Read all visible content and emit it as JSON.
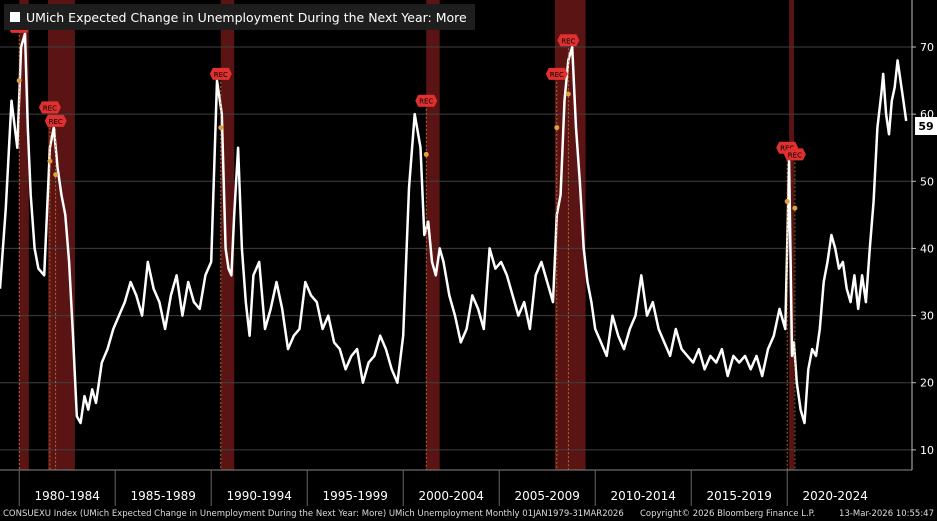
{
  "legend": {
    "label": "UMich Expected Change in Unemployment During the Next Year: More",
    "color": "#ffffff"
  },
  "footer": {
    "left": "CONSUEXU Index (UMich Expected Change in Unemployment During the Next Year: More) UMich Unemployment Monthly 01JAN1979-31MAR2026",
    "middle": "Copyright© 2026 Bloomberg Finance L.P.",
    "right": "13-Mar-2026 10:55:47"
  },
  "colors": {
    "background": "#000000",
    "line": "#ffffff",
    "recession": "#5a1414",
    "marker": "#e03030",
    "dot": "#e0a040",
    "grid": "#404040"
  },
  "chart_data": {
    "type": "line",
    "series": [
      {
        "name": "UMich Expected Change in Unemployment During the Next Year: More",
        "x": [
          1979.0,
          1979.3,
          1979.6,
          1979.9,
          1980.1,
          1980.3,
          1980.45,
          1980.6,
          1980.8,
          1981.0,
          1981.3,
          1981.6,
          1981.8,
          1982.0,
          1982.2,
          1982.4,
          1982.6,
          1982.8,
          1983.0,
          1983.2,
          1983.4,
          1983.6,
          1983.8,
          1984.0,
          1984.3,
          1984.6,
          1984.9,
          1985.2,
          1985.5,
          1985.8,
          1986.1,
          1986.4,
          1986.7,
          1987.0,
          1987.3,
          1987.6,
          1987.9,
          1988.2,
          1988.5,
          1988.8,
          1989.1,
          1989.4,
          1989.7,
          1990.0,
          1990.3,
          1990.55,
          1990.75,
          1990.9,
          1991.05,
          1991.2,
          1991.4,
          1991.6,
          1991.8,
          1992.0,
          1992.2,
          1992.5,
          1992.8,
          1993.1,
          1993.4,
          1993.7,
          1994.0,
          1994.3,
          1994.6,
          1994.9,
          1995.2,
          1995.5,
          1995.8,
          1996.1,
          1996.4,
          1996.7,
          1997.0,
          1997.3,
          1997.6,
          1997.9,
          1998.2,
          1998.5,
          1998.8,
          1999.1,
          1999.4,
          1999.7,
          2000.0,
          2000.3,
          2000.6,
          2000.9,
          2001.1,
          2001.3,
          2001.5,
          2001.7,
          2001.9,
          2002.1,
          2002.4,
          2002.7,
          2003.0,
          2003.3,
          2003.6,
          2003.9,
          2004.2,
          2004.5,
          2004.8,
          2005.1,
          2005.4,
          2005.7,
          2006.0,
          2006.3,
          2006.6,
          2006.9,
          2007.2,
          2007.5,
          2007.8,
          2008.0,
          2008.2,
          2008.4,
          2008.6,
          2008.8,
          2009.0,
          2009.2,
          2009.4,
          2009.6,
          2009.8,
          2010.0,
          2010.3,
          2010.6,
          2010.9,
          2011.2,
          2011.5,
          2011.8,
          2012.1,
          2012.4,
          2012.7,
          2013.0,
          2013.3,
          2013.6,
          2013.9,
          2014.2,
          2014.5,
          2014.8,
          2015.1,
          2015.4,
          2015.7,
          2016.0,
          2016.3,
          2016.6,
          2016.9,
          2017.2,
          2017.5,
          2017.8,
          2018.1,
          2018.4,
          2018.7,
          2019.0,
          2019.3,
          2019.6,
          2019.9,
          2020.1,
          2020.25,
          2020.35,
          2020.5,
          2020.7,
          2020.9,
          2021.1,
          2021.3,
          2021.5,
          2021.7,
          2021.9,
          2022.1,
          2022.3,
          2022.5,
          2022.7,
          2022.9,
          2023.1,
          2023.3,
          2023.5,
          2023.7,
          2023.9,
          2024.1,
          2024.3,
          2024.5,
          2024.7,
          2024.9,
          2025.0,
          2025.15,
          2025.3,
          2025.45,
          2025.6,
          2025.75,
          2025.9,
          2026.05,
          2026.2
        ],
        "y": [
          34,
          46,
          62,
          55,
          70,
          72,
          58,
          48,
          40,
          37,
          36,
          55,
          58,
          52,
          48,
          45,
          38,
          27,
          15,
          14,
          18,
          16,
          19,
          17,
          23,
          25,
          28,
          30,
          32,
          35,
          33,
          30,
          38,
          34,
          32,
          28,
          33,
          36,
          30,
          35,
          32,
          31,
          36,
          38,
          65,
          60,
          40,
          37,
          36,
          45,
          55,
          40,
          32,
          27,
          36,
          38,
          28,
          31,
          35,
          31,
          25,
          27,
          28,
          35,
          33,
          32,
          28,
          30,
          26,
          25,
          22,
          24,
          25,
          20,
          23,
          24,
          27,
          25,
          22,
          20,
          27,
          49,
          60,
          55,
          42,
          44,
          38,
          36,
          40,
          38,
          33,
          30,
          26,
          28,
          33,
          31,
          28,
          40,
          37,
          38,
          36,
          33,
          30,
          32,
          28,
          36,
          38,
          35,
          32,
          45,
          48,
          62,
          68,
          70,
          58,
          50,
          40,
          35,
          32,
          28,
          26,
          24,
          30,
          27,
          25,
          28,
          30,
          36,
          30,
          32,
          28,
          26,
          24,
          28,
          25,
          24,
          23,
          25,
          22,
          24,
          23,
          25,
          21,
          24,
          23,
          24,
          22,
          24,
          21,
          25,
          27,
          31,
          28,
          53,
          24,
          26,
          20,
          16,
          14,
          22,
          25,
          24,
          28,
          35,
          38,
          42,
          40,
          37,
          38,
          34,
          32,
          36,
          31,
          36,
          32,
          40,
          47,
          58,
          63,
          66,
          60,
          57,
          62,
          64,
          68,
          65,
          62,
          59
        ],
        "last_value_label": "59"
      }
    ],
    "recessions": [
      [
        1980.0,
        1980.5
      ],
      [
        1981.5,
        1982.9
      ],
      [
        1990.5,
        1991.2
      ],
      [
        2001.2,
        2001.9
      ],
      [
        2007.9,
        2009.5
      ],
      [
        2020.1,
        2020.35
      ]
    ],
    "rec_markers": [
      {
        "text": "REC",
        "x": 1980.0,
        "y": 73
      },
      {
        "text": "REC",
        "x": 1981.6,
        "y": 61
      },
      {
        "text": "REC",
        "x": 1981.9,
        "y": 59
      },
      {
        "text": "REC",
        "x": 1990.5,
        "y": 66
      },
      {
        "text": "REC",
        "x": 2001.2,
        "y": 62
      },
      {
        "text": "REC",
        "x": 2008.0,
        "y": 66
      },
      {
        "text": "REC",
        "x": 2008.6,
        "y": 71
      },
      {
        "text": "REC",
        "x": 2020.0,
        "y": 55
      },
      {
        "text": "REC",
        "x": 2020.4,
        "y": 54
      }
    ],
    "xlim": [
      1979.0,
      2026.5
    ],
    "ylim": [
      7,
      77
    ],
    "xtick_labels": [
      "1980-1984",
      "1985-1989",
      "1990-1994",
      "1995-1999",
      "2000-2004",
      "2005-2009",
      "2010-2014",
      "2015-2019",
      "2020-2024"
    ],
    "yticks": [
      10,
      20,
      30,
      40,
      50,
      60,
      70
    ],
    "grid": true,
    "legend_position": "top-left",
    "axis_side": "right"
  }
}
